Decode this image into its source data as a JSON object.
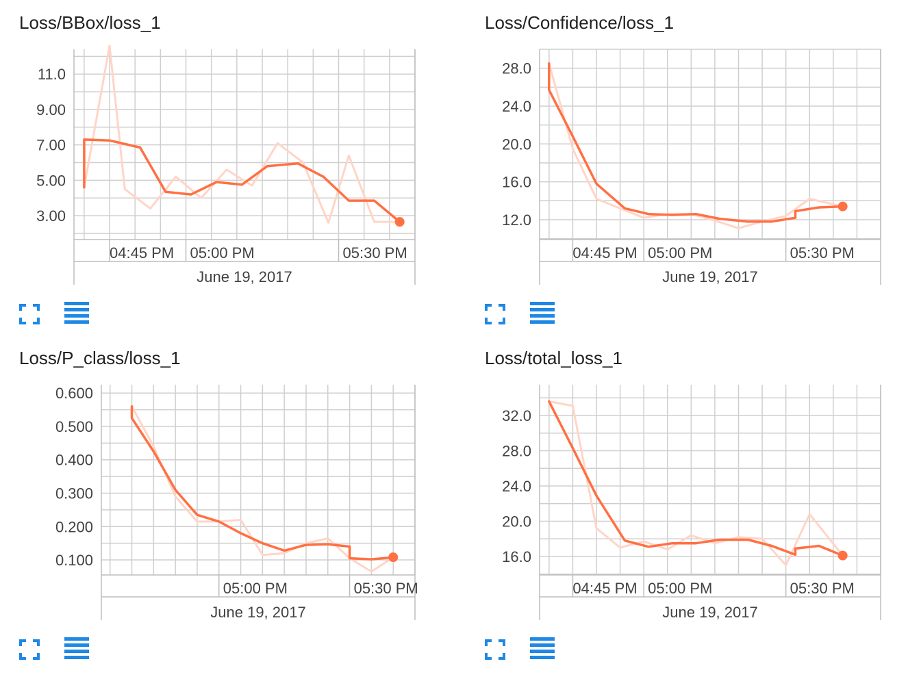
{
  "theme": {
    "line_color": "#ff7043",
    "raw_line_color": "#ffd5c7",
    "grid_color": "#cfcfcf",
    "axis_color": "#bdbdbd",
    "icon_color": "#1e88e5"
  },
  "toolbar": {
    "expand_icon": "expand-icon",
    "data_table_icon": "data-table-icon"
  },
  "chart_data": [
    {
      "type": "line",
      "title": "Loss/BBox/loss_1",
      "x_tick_labels": [
        "04:45 PM",
        "05:00 PM",
        "05:30 PM"
      ],
      "x_axis_date": "June 19, 2017",
      "y_tick_labels": [
        "11.0",
        "9.00",
        "7.00",
        "5.00",
        "3.00"
      ],
      "ylim": [
        1.65,
        12.4
      ],
      "series": [
        {
          "role": "smoothed",
          "x": [
            "16:40",
            "16:40",
            "16:45",
            "16:51",
            "16:56",
            "17:01",
            "17:06",
            "17:11",
            "17:16",
            "17:22",
            "17:27",
            "17:32",
            "17:37",
            "17:42"
          ],
          "y": [
            4.6,
            7.3,
            7.25,
            6.85,
            4.35,
            4.2,
            4.9,
            4.75,
            5.8,
            5.95,
            5.2,
            3.85,
            3.85,
            2.65
          ]
        },
        {
          "role": "raw",
          "x": [
            "16:40",
            "16:45",
            "16:48",
            "16:53",
            "16:58",
            "17:03",
            "17:08",
            "17:13",
            "17:18",
            "17:23",
            "17:28",
            "17:32",
            "17:37",
            "17:42"
          ],
          "y": [
            4.6,
            12.6,
            4.5,
            3.4,
            5.2,
            4.0,
            5.6,
            4.7,
            7.1,
            6.0,
            2.6,
            6.4,
            2.65,
            2.65
          ]
        }
      ]
    },
    {
      "type": "line",
      "title": "Loss/Confidence/loss_1",
      "x_tick_labels": [
        "04:45 PM",
        "05:00 PM",
        "05:30 PM"
      ],
      "x_axis_date": "June 19, 2017",
      "y_tick_labels": [
        "28.0",
        "24.0",
        "20.0",
        "16.0",
        "12.0"
      ],
      "ylim": [
        9.9,
        30.0
      ],
      "series": [
        {
          "role": "smoothed",
          "x": [
            "16:40",
            "16:40",
            "16:45",
            "16:50",
            "16:56",
            "17:01",
            "17:06",
            "17:11",
            "17:16",
            "17:22",
            "17:27",
            "17:32",
            "17:32",
            "17:37",
            "17:42"
          ],
          "y": [
            28.5,
            25.7,
            20.8,
            15.8,
            13.2,
            12.6,
            12.5,
            12.6,
            12.1,
            11.8,
            11.8,
            12.2,
            12.9,
            13.3,
            13.4
          ]
        },
        {
          "role": "raw",
          "x": [
            "16:40",
            "16:45",
            "16:50",
            "16:55",
            "17:00",
            "17:05",
            "17:10",
            "17:15",
            "17:20",
            "17:25",
            "17:30",
            "17:35",
            "17:42"
          ],
          "y": [
            28.5,
            19.5,
            14.2,
            13.2,
            12.2,
            12.6,
            12.6,
            11.9,
            11.1,
            11.8,
            12.4,
            14.2,
            13.4
          ]
        }
      ]
    },
    {
      "type": "line",
      "title": "Loss/P_class/loss_1",
      "x_tick_labels": [
        "05:00 PM",
        "05:30 PM"
      ],
      "x_axis_date": "June 19, 2017",
      "y_tick_labels": [
        "0.600",
        "0.500",
        "0.400",
        "0.300",
        "0.200",
        "0.100"
      ],
      "ylim": [
        0.055,
        0.625
      ],
      "series": [
        {
          "role": "smoothed",
          "x": [
            "16:40",
            "16:40",
            "16:45",
            "16:50",
            "16:55",
            "17:00",
            "17:05",
            "17:10",
            "17:15",
            "17:20",
            "17:25",
            "17:30",
            "17:30",
            "17:35",
            "17:40"
          ],
          "y": [
            0.56,
            0.525,
            0.425,
            0.31,
            0.235,
            0.215,
            0.18,
            0.15,
            0.128,
            0.145,
            0.147,
            0.14,
            0.105,
            0.102,
            0.108
          ]
        },
        {
          "role": "raw",
          "x": [
            "16:40",
            "16:45",
            "16:50",
            "16:55",
            "17:00",
            "17:05",
            "17:10",
            "17:15",
            "17:20",
            "17:25",
            "17:30",
            "17:35",
            "17:40"
          ],
          "y": [
            0.56,
            0.44,
            0.29,
            0.215,
            0.215,
            0.22,
            0.115,
            0.12,
            0.15,
            0.165,
            0.105,
            0.065,
            0.108
          ]
        }
      ]
    },
    {
      "type": "line",
      "title": "Loss/total_loss_1",
      "x_tick_labels": [
        "04:45 PM",
        "05:00 PM",
        "05:30 PM"
      ],
      "x_axis_date": "June 19, 2017",
      "y_tick_labels": [
        "32.0",
        "28.0",
        "24.0",
        "20.0",
        "16.0"
      ],
      "ylim": [
        13.9,
        35.5
      ],
      "series": [
        {
          "role": "smoothed",
          "x": [
            "16:40",
            "16:45",
            "16:50",
            "16:56",
            "17:01",
            "17:06",
            "17:11",
            "17:16",
            "17:22",
            "17:27",
            "17:32",
            "17:32",
            "17:37",
            "17:42"
          ],
          "y": [
            33.6,
            28.3,
            22.9,
            17.8,
            17.1,
            17.5,
            17.5,
            17.9,
            17.9,
            17.2,
            16.2,
            16.9,
            17.2,
            16.1
          ]
        },
        {
          "role": "raw",
          "x": [
            "16:40",
            "16:45",
            "16:50",
            "16:55",
            "17:00",
            "17:05",
            "17:10",
            "17:15",
            "17:20",
            "17:25",
            "17:30",
            "17:35",
            "17:42"
          ],
          "y": [
            33.6,
            33.1,
            19.2,
            17.0,
            17.7,
            16.8,
            18.4,
            17.5,
            18.2,
            18.0,
            15.0,
            20.8,
            16.1
          ]
        }
      ]
    }
  ]
}
